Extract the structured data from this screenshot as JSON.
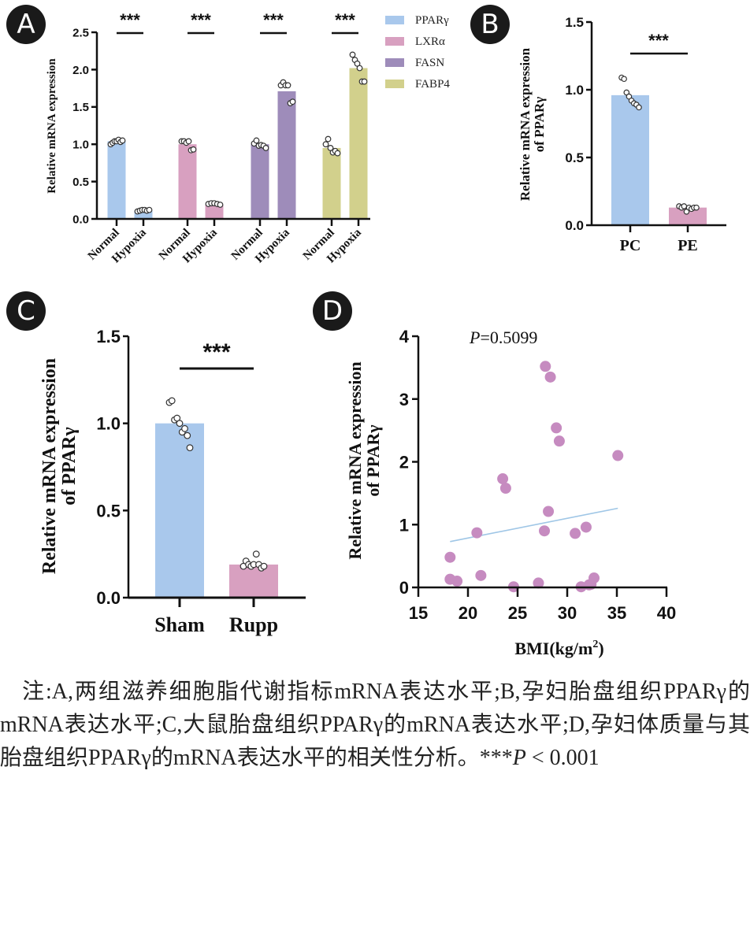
{
  "panels": {
    "A": {
      "label": "A"
    },
    "B": {
      "label": "B"
    },
    "C": {
      "label": "C"
    },
    "D": {
      "label": "D"
    }
  },
  "chart_data": [
    {
      "id": "A",
      "type": "bar",
      "title": "",
      "ylabel": "Relative mRNA expression",
      "xlabel": "",
      "ylim": [
        0,
        2.5
      ],
      "yticks": [
        "0.0",
        "0.5",
        "1.0",
        "1.5",
        "2.0",
        "2.5"
      ],
      "categories": [
        "Normal",
        "Hypoxia"
      ],
      "legend": {
        "position": "top-right",
        "entries": [
          "PPARγ",
          "LXRα",
          "FASN",
          "FABP4"
        ]
      },
      "significance": [
        "***",
        "***",
        "***",
        "***"
      ],
      "series": [
        {
          "name": "PPARγ",
          "color": "#a9c8ec",
          "values": [
            1.04,
            0.11
          ],
          "points": [
            [
              1.0,
              1.02,
              1.04,
              1.04,
              1.06,
              1.03,
              1.05
            ],
            [
              0.1,
              0.11,
              0.12,
              0.12,
              0.11,
              0.12
            ]
          ]
        },
        {
          "name": "LXRα",
          "color": "#d8a0c0",
          "values": [
            1.0,
            0.19
          ],
          "points": [
            [
              1.04,
              1.04,
              1.02,
              1.04,
              0.92,
              0.93
            ],
            [
              0.2,
              0.21,
              0.21,
              0.2,
              0.19
            ]
          ]
        },
        {
          "name": "FASN",
          "color": "#9e8cba",
          "values": [
            1.0,
            1.71
          ],
          "points": [
            [
              1.01,
              1.05,
              0.98,
              0.99,
              0.98,
              0.95
            ],
            [
              1.79,
              1.83,
              1.79,
              1.79,
              1.55,
              1.57
            ]
          ]
        },
        {
          "name": "FABP4",
          "color": "#d2d08c",
          "values": [
            0.95,
            2.02
          ],
          "points": [
            [
              1.0,
              1.07,
              0.95,
              0.89,
              0.91,
              0.88
            ],
            [
              2.2,
              2.13,
              2.08,
              2.02,
              1.84,
              1.84
            ]
          ]
        }
      ]
    },
    {
      "id": "B",
      "type": "bar",
      "title": "",
      "ylabel": "Relative mRNA expression of PPARγ",
      "xlabel": "",
      "ylim": [
        0,
        1.5
      ],
      "yticks": [
        "0.0",
        "0.5",
        "1.0",
        "1.5"
      ],
      "categories": [
        "PC",
        "PE"
      ],
      "significance": "***",
      "values": [
        0.96,
        0.13
      ],
      "colors": [
        "#a9c8ec",
        "#d8a0c0"
      ],
      "points": [
        [
          1.09,
          1.08,
          0.98,
          0.95,
          0.92,
          0.9,
          0.89,
          0.87
        ],
        [
          0.14,
          0.13,
          0.14,
          0.1,
          0.13,
          0.12,
          0.13,
          0.13
        ]
      ]
    },
    {
      "id": "C",
      "type": "bar",
      "title": "",
      "ylabel": "Relative mRNA expression of PPARγ",
      "xlabel": "",
      "ylim": [
        0,
        1.5
      ],
      "yticks": [
        "0.0",
        "0.5",
        "1.0",
        "1.5"
      ],
      "categories": [
        "Sham",
        "Rupp"
      ],
      "significance": "***",
      "values": [
        1.0,
        0.19
      ],
      "colors": [
        "#a9c8ec",
        "#d8a0c0"
      ],
      "points": [
        [
          1.12,
          1.13,
          1.02,
          1.03,
          1.0,
          0.95,
          0.97,
          0.93,
          0.86
        ],
        [
          0.18,
          0.21,
          0.19,
          0.18,
          0.19,
          0.25,
          0.19,
          0.17,
          0.18
        ]
      ]
    },
    {
      "id": "D",
      "type": "scatter",
      "title": "",
      "annotation": {
        "p_label": "P",
        "p_value": "=0.5099"
      },
      "ylabel": "Relative mRNA expression of PPARγ",
      "xlabel": "BMI(kg/m",
      "xlabel_sup": "2",
      "xlabel_tail": ")",
      "xlim": [
        15,
        40
      ],
      "ylim": [
        0,
        4
      ],
      "xticks": [
        "15",
        "20",
        "25",
        "30",
        "35",
        "40"
      ],
      "yticks": [
        "0",
        "1",
        "2",
        "3",
        "4"
      ],
      "point_color": "#c68bc0",
      "line_color": "#9fc6e6",
      "x": [
        18.2,
        18.2,
        18.9,
        20.9,
        21.3,
        23.5,
        23.8,
        24.6,
        27.1,
        27.7,
        27.8,
        28.1,
        28.3,
        28.9,
        29.2,
        30.8,
        31.4,
        31.9,
        32.2,
        32.4,
        32.7,
        35.1
      ],
      "y": [
        0.48,
        0.13,
        0.1,
        0.87,
        0.19,
        1.73,
        1.58,
        0.01,
        0.07,
        0.9,
        3.52,
        1.21,
        3.35,
        2.54,
        2.33,
        0.86,
        0.01,
        0.96,
        0.04,
        0.05,
        0.15,
        2.1
      ],
      "fit_line": {
        "x": [
          18.2,
          35.1
        ],
        "y": [
          0.73,
          1.26
        ]
      }
    }
  ],
  "caption": {
    "lines": [
      "注:A,两组滋养细胞脂代谢指标mRNA表达水平;B,孕妇胎盘组织PPARγ的mRNA表达水平;C,大鼠胎盘组织PPARγ的mRNA表达水平;D,孕妇体质量与其胎盘组织PPARγ的mRNA表达水平的相关性分析。***"
    ],
    "p_italic": "P",
    "tail": " < 0.001"
  }
}
